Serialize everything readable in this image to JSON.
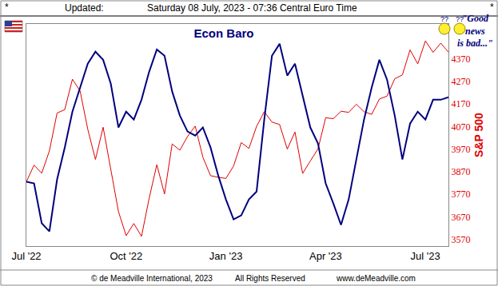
{
  "chart_data": {
    "type": "line",
    "title": "Econ Baro",
    "corner_marks": [
      "*",
      "*"
    ],
    "updated_label": "Updated:",
    "updated": "Saturday 08 July, 2023 - 07:36 Central Euro Time",
    "quote": [
      "\"Good",
      "news",
      "is bad...\""
    ],
    "faces": [
      "??",
      "??"
    ],
    "footer": [
      "© de Meadville International, 2023",
      "All Rights Reserved",
      "www.deMeadville.com"
    ],
    "y_label": "S&P 500",
    "categories": [
      "Jul '22",
      null,
      null,
      null,
      null,
      null,
      null,
      null,
      null,
      null,
      null,
      null,
      null,
      "Oct '22",
      null,
      null,
      null,
      null,
      null,
      null,
      null,
      null,
      null,
      null,
      null,
      null,
      "Jan '23",
      null,
      null,
      null,
      null,
      null,
      null,
      null,
      null,
      null,
      null,
      null,
      null,
      "Apr '23",
      null,
      null,
      null,
      null,
      null,
      null,
      null,
      null,
      null,
      null,
      null,
      null,
      "Jul '23",
      null,
      null,
      null
    ],
    "series": [
      {
        "name": "Econ Baro",
        "color": "#000080",
        "values": [
          3825,
          3818,
          3641,
          3605,
          3835,
          3977,
          4136,
          4243,
          4349,
          4402,
          4366,
          4260,
          4066,
          4136,
          4101,
          4189,
          4313,
          4412,
          4384,
          4225,
          4119,
          4048,
          4030,
          4066,
          3977,
          3853,
          3747,
          3658,
          3676,
          3747,
          3782,
          4101,
          4384,
          4437,
          4296,
          4349,
          4207,
          4066,
          3995,
          3818,
          3729,
          3634,
          3747,
          3924,
          4101,
          4243,
          4366,
          4278,
          4119,
          3924,
          4083,
          4136,
          4101,
          4189,
          4189,
          4200
        ]
      },
      {
        "name": "S&P 500",
        "color": "#e00000",
        "values": [
          3825,
          3899,
          3863,
          3962,
          4130,
          4145,
          4280,
          4228,
          4058,
          3924,
          4067,
          3873,
          3693,
          3586,
          3640,
          3583,
          3752,
          3901,
          3771,
          3993,
          3965,
          4026,
          4072,
          3934,
          3852,
          3845,
          3840,
          3895,
          3999,
          3973,
          4071,
          4136,
          4090,
          4079,
          3970,
          4046,
          3862,
          3917,
          3971,
          4109,
          4105,
          4138,
          4133,
          4169,
          4136,
          4124,
          4192,
          4205,
          4282,
          4299,
          4410,
          4348,
          4450,
          4399,
          4440,
          4400
        ]
      }
    ],
    "ylim": [
      3540,
      4525
    ],
    "yticks": [
      3570,
      3670,
      3770,
      3870,
      3970,
      4070,
      4170,
      4270,
      4370
    ],
    "grid": false
  }
}
